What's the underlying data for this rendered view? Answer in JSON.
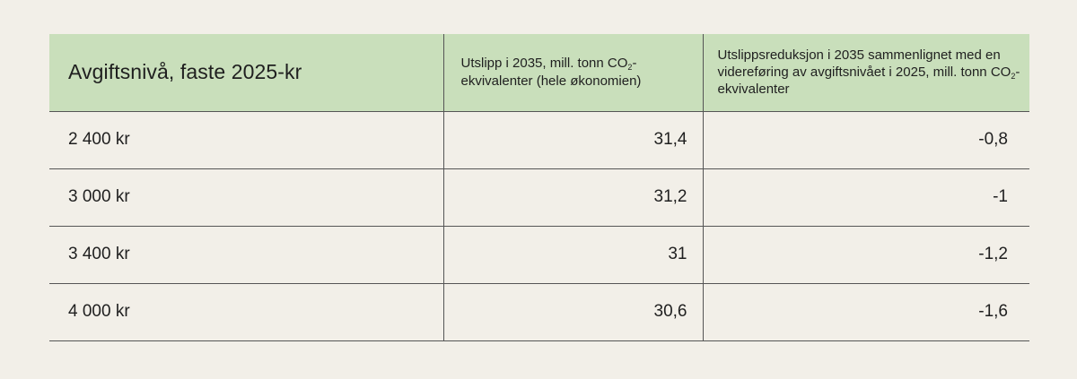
{
  "table": {
    "header": {
      "col1": "Avgiftsnivå, faste 2025-kr",
      "col2": {
        "before": "Utslipp i 2035, mill. tonn CO",
        "sub": "2",
        "after": "-ekvivalenter (hele økonomien)"
      },
      "col3": {
        "before": "Utslippsreduksjon i 2035 sammenlignet med en videreføring av avgiftsnivået i 2025, mill. tonn CO",
        "sub": "2",
        "after": "-ekvivalenter"
      }
    },
    "rows": [
      {
        "level": "2 400 kr",
        "emissions": "31,4",
        "reduction": "-0,8"
      },
      {
        "level": "3 000 kr",
        "emissions": "31,2",
        "reduction": "-1"
      },
      {
        "level": "3 400 kr",
        "emissions": "31",
        "reduction": "-1,2"
      },
      {
        "level": "4 000 kr",
        "emissions": "30,6",
        "reduction": "-1,6"
      }
    ]
  }
}
